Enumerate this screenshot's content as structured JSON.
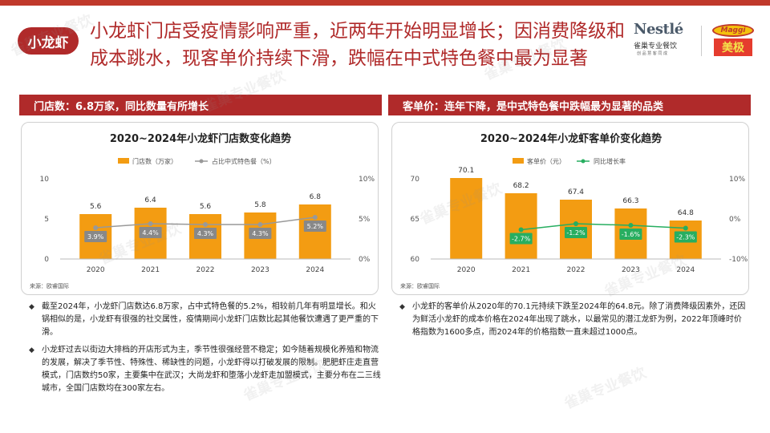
{
  "header": {
    "tag": "小龙虾",
    "title": "小龙虾门店受疫情影响严重，近两年开始明显增长；因消费降级和成本跳水，现客单价持续下滑，跌幅在中式特色餐中最为显著"
  },
  "logos": {
    "nestle_brand": "Nestlé",
    "nestle_sub": "雀巢专业餐饮",
    "nestle_sub2": "创 品 慧 客 同 成",
    "maggi_brand": "Maggi",
    "maggi_cn": "美极"
  },
  "sections": {
    "left_header": "门店数：6.8万家，同比数量有所增长",
    "right_header": "客单价：连年下降，是中式特色餐中跌幅最为显著的品类"
  },
  "watermark": "雀巢专业餐饮",
  "notes_left": [
    "截至2024年，小龙虾门店数达6.8万家，占中式特色餐的5.2%，相较前几年有明显增长。和火锅相似的是，小龙虾有很强的社交属性，疫情期间小龙虾门店数比起其他餐饮遭遇了更严重的下滑。",
    "小龙虾过去以街边大排档的开店形式为主，季节性很强经营不稳定；如今随着规模化养殖和物流的发展，解决了季节性、特殊性、稀缺性的问题，小龙虾得以打破发展的限制。肥肥虾庄走直营模式，门店数约50家，主要集中在武汉；大尚龙虾和堕落小龙虾走加盟模式，主要分布在二三线城市，全国门店数均在300家左右。"
  ],
  "notes_right": [
    "小龙虾的客单价从2020年的70.1元持续下跌至2024年的64.8元。除了消费降级因素外，还因为鲜活小龙虾的成本价格在2024年出现了跳水，以最常见的潜江龙虾为例，2022年顶峰时价格指数为1600多点，而2024年的价格指数一直未超过1000点。"
  ],
  "colors": {
    "brand_red": "#b02a2a",
    "bar_orange": "#f39c12",
    "line_gray": "#999999",
    "line_green": "#27ae60"
  },
  "chart_data": [
    {
      "type": "bar",
      "title": "2020~2024年小龙虾门店数变化趋势",
      "source": "来源：欧睿国际",
      "categories": [
        "2020",
        "2021",
        "2022",
        "2023",
        "2024"
      ],
      "series": [
        {
          "name": "门店数（万家）",
          "type": "bar",
          "values": [
            5.6,
            6.4,
            5.6,
            5.8,
            6.8
          ],
          "labels": [
            "5.6",
            "6.4",
            "5.6",
            "5.8",
            "6.8"
          ]
        },
        {
          "name": "占比中式特色餐（%）",
          "type": "line",
          "axis": "right",
          "values": [
            3.9,
            4.4,
            4.3,
            4.3,
            5.2
          ],
          "labels": [
            "3.9%",
            "4.4%",
            "4.3%",
            "4.3%",
            "5.2%"
          ]
        }
      ],
      "ylim": [
        0,
        10
      ],
      "yticks": [
        "0",
        "5",
        "10"
      ],
      "y2lim": [
        0,
        10
      ],
      "y2ticks": [
        "0%",
        "5%",
        "10%"
      ],
      "legend": "top"
    },
    {
      "type": "bar",
      "title": "2020~2024年小龙虾客单价变化趋势",
      "source": "来源：欧睿国际",
      "categories": [
        "2020",
        "2021",
        "2022",
        "2023",
        "2024"
      ],
      "series": [
        {
          "name": "客单价（元）",
          "type": "bar",
          "values": [
            70.1,
            68.2,
            67.4,
            66.3,
            64.8
          ],
          "labels": [
            "70.1",
            "68.2",
            "67.4",
            "66.3",
            "64.8"
          ]
        },
        {
          "name": "同比增长率",
          "type": "line",
          "axis": "right",
          "values": [
            null,
            -2.7,
            -1.2,
            -1.6,
            -2.3
          ],
          "labels": [
            "",
            "-2.7%",
            "-1.2%",
            "-1.6%",
            "-2.3%"
          ]
        }
      ],
      "ylim": [
        60,
        70
      ],
      "yticks": [
        "60",
        "65",
        "70"
      ],
      "y2lim": [
        -10,
        10
      ],
      "y2ticks": [
        "-10%",
        "0%",
        "10%"
      ],
      "legend": "top"
    }
  ]
}
